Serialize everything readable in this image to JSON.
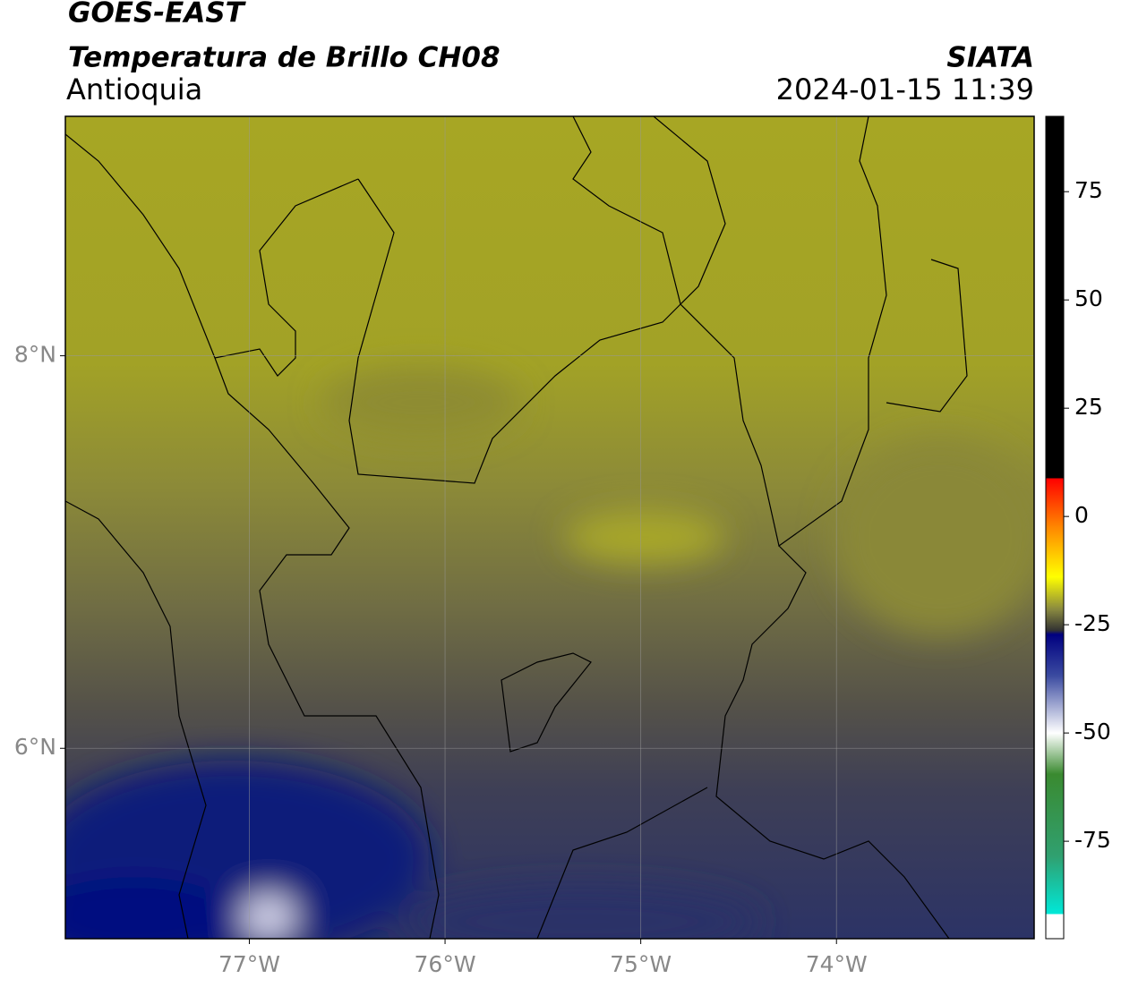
{
  "header": {
    "source": "GOES-EAST",
    "product": "Temperatura de Brillo CH08",
    "agency": "SIATA",
    "region": "Antioquia",
    "datetime": "2024-01-15 11:39"
  },
  "map": {
    "xlim": [
      -77.94,
      -72.99
    ],
    "ylim": [
      5.03,
      9.22
    ],
    "xticks": [
      {
        "value": -77,
        "label": "77°W"
      },
      {
        "value": -76,
        "label": "76°W"
      },
      {
        "value": -75,
        "label": "75°W"
      },
      {
        "value": -74,
        "label": "74°W"
      }
    ],
    "yticks": [
      {
        "value": 8,
        "label": "8°N"
      },
      {
        "value": 6,
        "label": "6°N"
      }
    ]
  },
  "colorbar": {
    "lim": [
      -97.5,
      92.4
    ],
    "ticks": [
      75,
      50,
      25,
      0,
      -25,
      -50,
      -75
    ]
  }
}
